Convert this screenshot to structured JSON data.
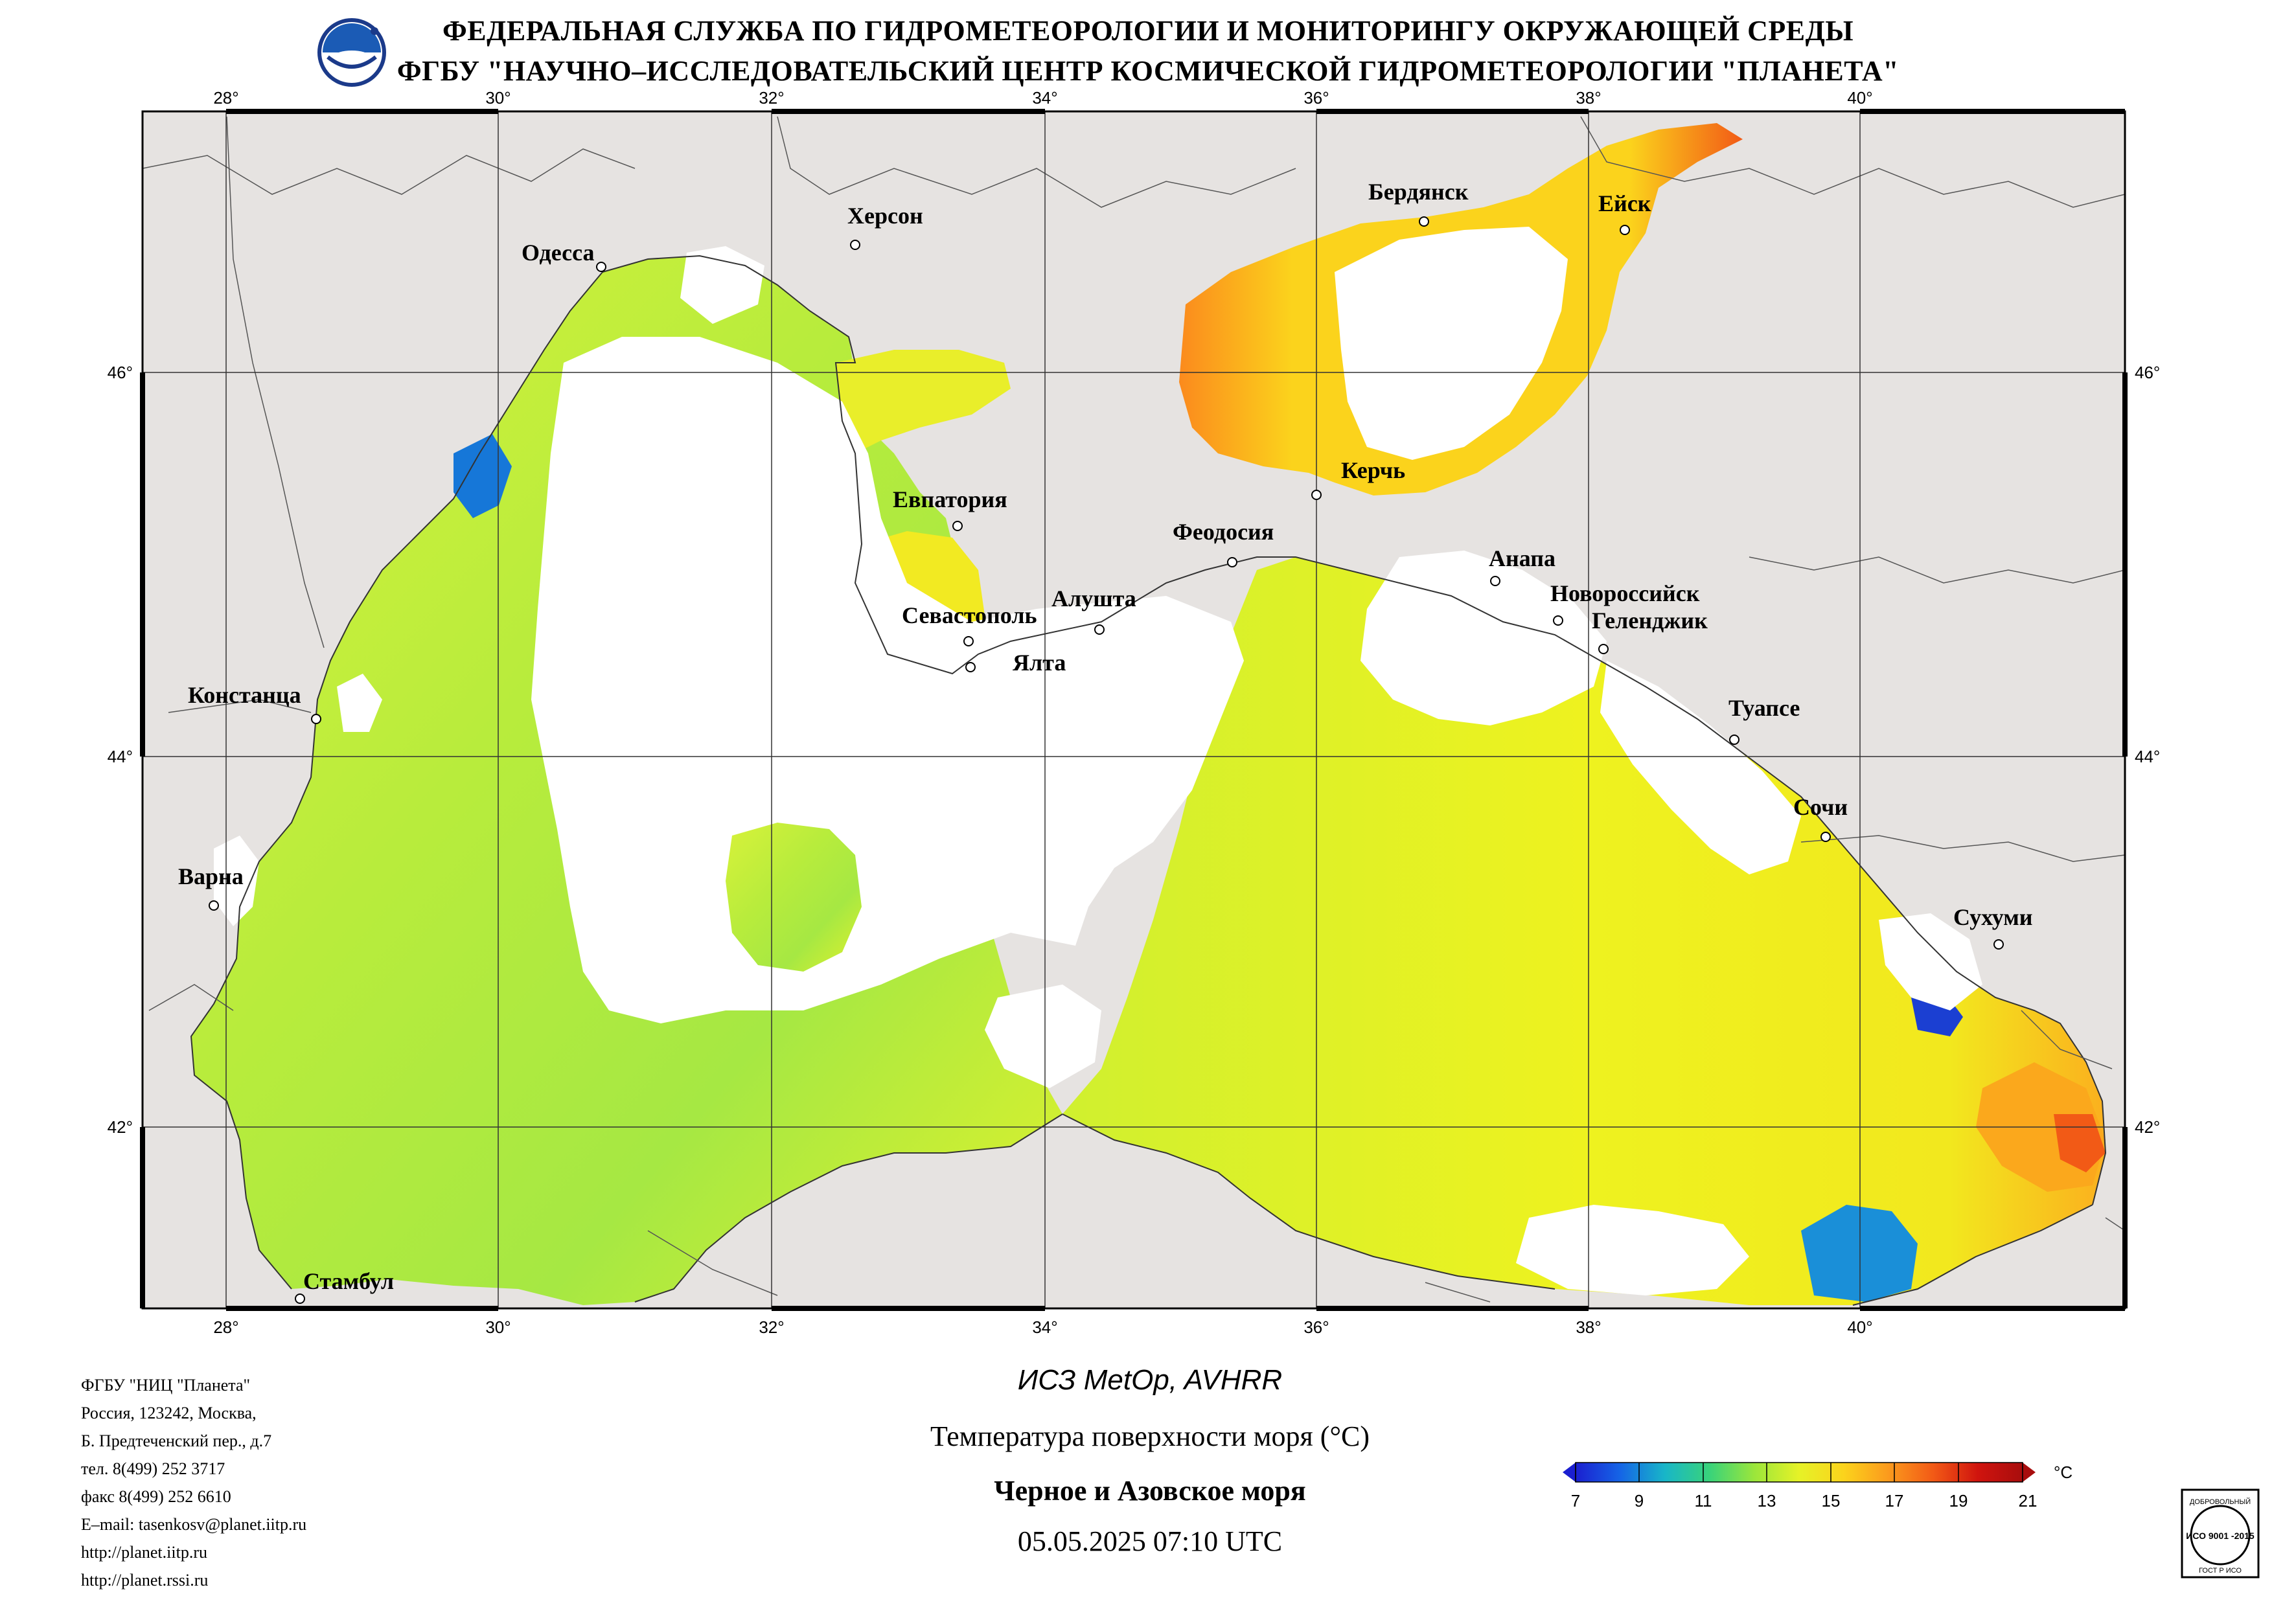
{
  "header": {
    "line1": "ФЕДЕРАЛЬНАЯ СЛУЖБА ПО ГИДРОМЕТЕОРОЛОГИИ И МОНИТОРИНГУ ОКРУЖАЮЩЕЙ СРЕДЫ",
    "line2": "ФГБУ \"НАУЧНО–ИССЛЕДОВАТЕЛЬСКИЙ ЦЕНТР КОСМИЧЕСКОЙ ГИДРОМЕТЕОРОЛОГИИ \"ПЛАНЕТА\""
  },
  "map": {
    "lon_ticks": [
      "28°",
      "30°",
      "32°",
      "34°",
      "36°",
      "38°",
      "40°"
    ],
    "lat_ticks": [
      "46°",
      "44°",
      "42°"
    ],
    "cities": [
      {
        "id": "odessa",
        "label": "Одесса"
      },
      {
        "id": "kherson",
        "label": "Херсон"
      },
      {
        "id": "berdyansk",
        "label": "Бердянск"
      },
      {
        "id": "yeysk",
        "label": "Ейск"
      },
      {
        "id": "kerch",
        "label": "Керчь"
      },
      {
        "id": "evpatoria",
        "label": "Евпатория"
      },
      {
        "id": "feodosia",
        "label": "Феодосия"
      },
      {
        "id": "anapa",
        "label": "Анапа"
      },
      {
        "id": "novorossiysk",
        "label": "Новороссийск"
      },
      {
        "id": "gelendzhik",
        "label": "Геленджик"
      },
      {
        "id": "sevastopol",
        "label": "Севастополь"
      },
      {
        "id": "alushta",
        "label": "Алушта"
      },
      {
        "id": "yalta",
        "label": "Ялта"
      },
      {
        "id": "constanta",
        "label": "Констанца"
      },
      {
        "id": "tuapse",
        "label": "Туапсе"
      },
      {
        "id": "sochi",
        "label": "Сочи"
      },
      {
        "id": "varna",
        "label": "Варна"
      },
      {
        "id": "sukhumi",
        "label": "Сухуми"
      },
      {
        "id": "istanbul",
        "label": "Стамбул"
      }
    ]
  },
  "colors": {
    "land": "#e6e3e1",
    "cloud": "#ffffff",
    "border": "#000000",
    "sst_cold": "#0a2fd6",
    "sst_mid": "#c8f23c",
    "sst_warm": "#fb9a1d",
    "sst_hot": "#d0140e"
  },
  "footer": {
    "org_lines": [
      "ФГБУ \"НИЦ \"Планета\"",
      "Россия, 123242, Москва,",
      "Б. Предтеченский пер., д.7",
      "тел. 8(499) 252 3717",
      "факс 8(499) 252 6610",
      "E–mail: tasenkosv@planet.iitp.ru",
      "http://planet.iitp.ru",
      "http://planet.rssi.ru"
    ],
    "satellite": "ИСЗ MetOp, AVHRR",
    "product": "Температура поверхности моря (°С)",
    "region": "Черное и Азовское моря",
    "datetime": "05.05.2025 07:10 UTC"
  },
  "colorbar": {
    "unit": "°С",
    "ticks": [
      "7",
      "9",
      "11",
      "13",
      "15",
      "17",
      "19",
      "21"
    ],
    "range": [
      7,
      21
    ],
    "stops": [
      "#1b1fd0",
      "#1565e6",
      "#18b6c8",
      "#39d37a",
      "#9be63b",
      "#e6f227",
      "#fbd31c",
      "#fb9a1d",
      "#f25a16",
      "#d0140e",
      "#a80d0d"
    ]
  },
  "cert_badge": {
    "top_text": "ДОБРОВОЛЬНЫЙ",
    "mid_text": "ИСО 9001 -2015",
    "bottom_text": "ГОСТ Р ИСО"
  }
}
